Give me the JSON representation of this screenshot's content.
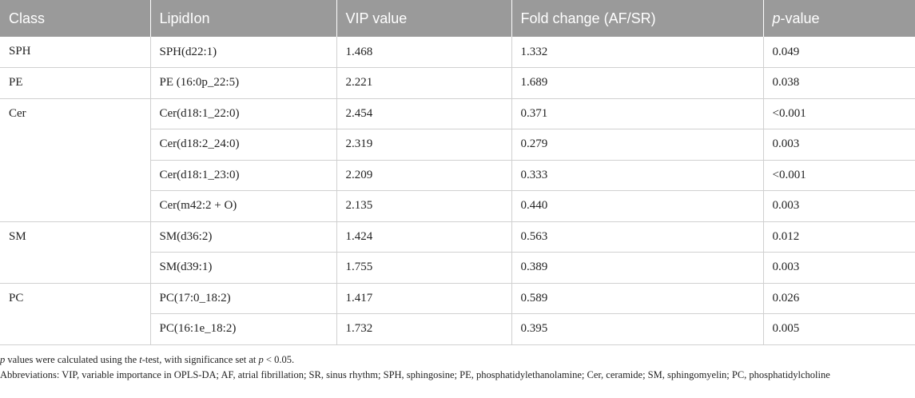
{
  "table": {
    "headers": [
      "Class",
      "LipidIon",
      "VIP value",
      "Fold change (AF/SR)",
      "p",
      "-value"
    ],
    "groups": [
      {
        "class": "SPH",
        "rows": [
          [
            "SPH(d22:1)",
            "1.468",
            "1.332",
            "0.049"
          ]
        ]
      },
      {
        "class": "PE",
        "rows": [
          [
            "PE (16:0p_22:5)",
            "2.221",
            "1.689",
            "0.038"
          ]
        ]
      },
      {
        "class": "Cer",
        "rows": [
          [
            "Cer(d18:1_22:0)",
            "2.454",
            "0.371",
            "<0.001"
          ],
          [
            "Cer(d18:2_24:0)",
            "2.319",
            "0.279",
            "0.003"
          ],
          [
            "Cer(d18:1_23:0)",
            "2.209",
            "0.333",
            "<0.001"
          ],
          [
            "Cer(m42:2 + O)",
            "2.135",
            "0.440",
            "0.003"
          ]
        ]
      },
      {
        "class": "SM",
        "rows": [
          [
            "SM(d36:2)",
            "1.424",
            "0.563",
            "0.012"
          ],
          [
            "SM(d39:1)",
            "1.755",
            "0.389",
            "0.003"
          ]
        ]
      },
      {
        "class": "PC",
        "rows": [
          [
            "PC(17:0_18:2)",
            "1.417",
            "0.589",
            "0.026"
          ],
          [
            "PC(16:1e_18:2)",
            "1.732",
            "0.395",
            "0.005"
          ]
        ]
      }
    ]
  },
  "footnotes": {
    "f1_p": "p",
    "f1_a": " values were calculated using the ",
    "f1_t": "t",
    "f1_b": "-test, with significance set at ",
    "f1_p2": "p",
    "f1_c": " < 0.05.",
    "f2": "Abbreviations: VIP, variable importance in OPLS-DA; AF, atrial fibrillation; SR, sinus rhythm; SPH, sphingosine; PE, phosphatidylethanolamine; Cer, ceramide; SM, sphingomyelin; PC, phosphatidylcholine"
  }
}
